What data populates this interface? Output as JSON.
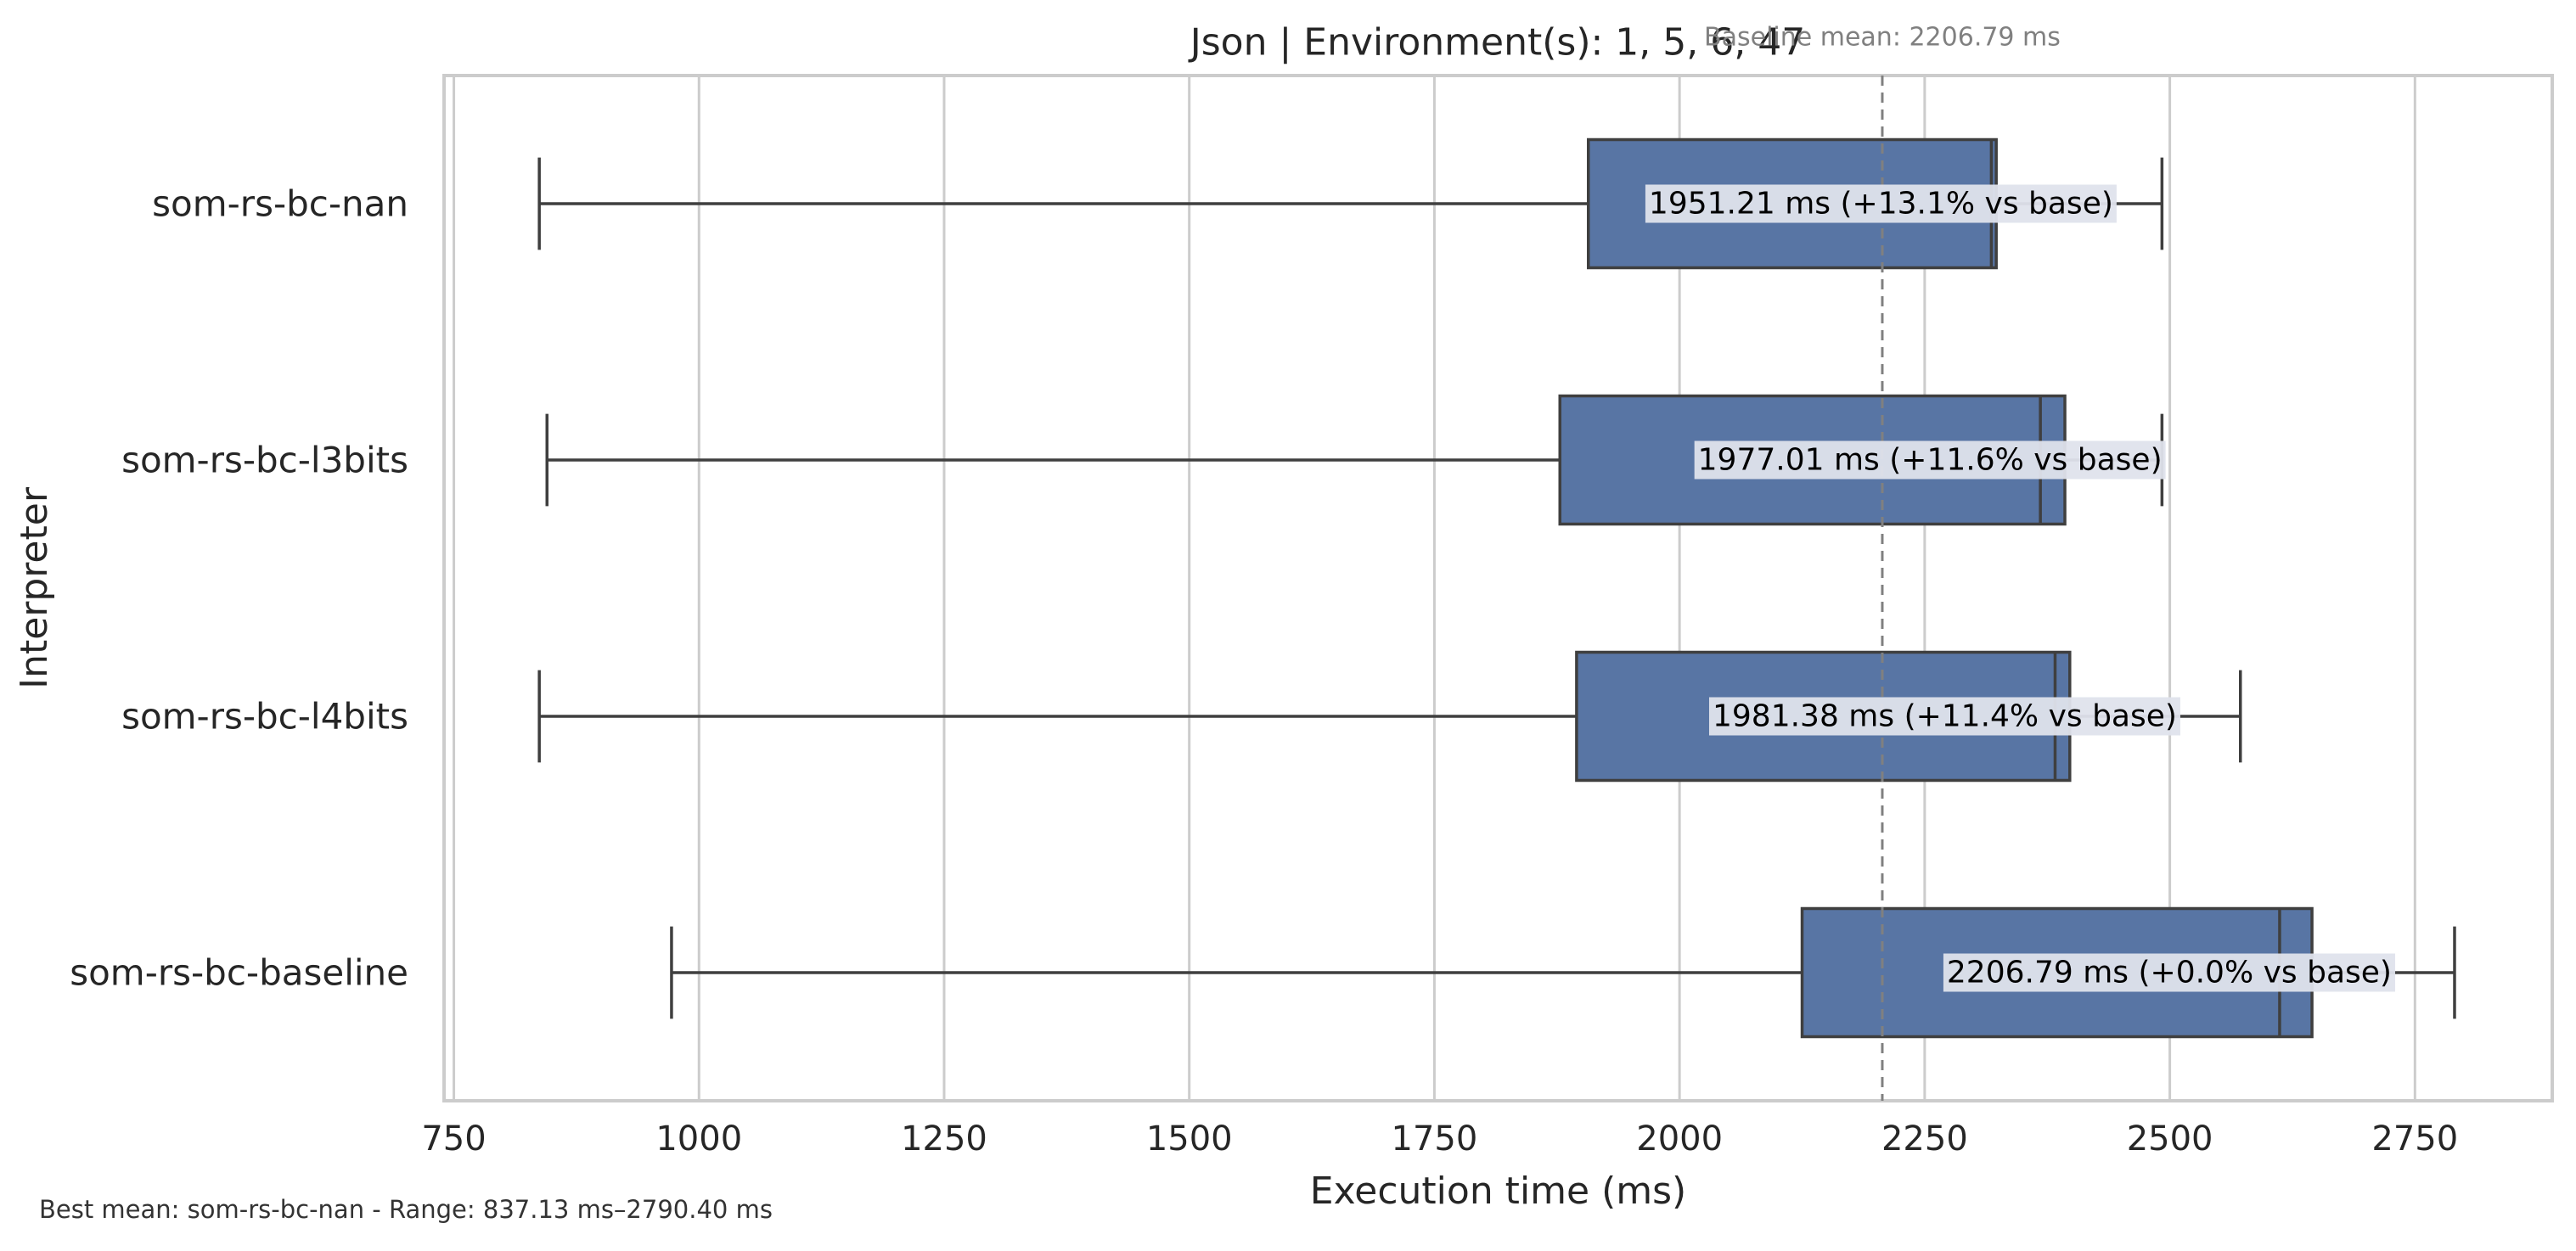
{
  "chart_data": {
    "type": "box",
    "title": "Json | Environment(s): 1, 5, 6, 47",
    "xlabel": "Execution time (ms)",
    "ylabel": "Interpreter",
    "xlim": [
      740,
      2890
    ],
    "xticks": [
      750,
      1000,
      1250,
      1500,
      1750,
      2000,
      2250,
      2500,
      2750
    ],
    "grid": "vertical",
    "orientation": "horizontal",
    "categories": [
      "som-rs-bc-nan",
      "som-rs-bc-l3bits",
      "som-rs-bc-l4bits",
      "som-rs-bc-baseline"
    ],
    "boxes": [
      {
        "name": "som-rs-bc-nan",
        "whisker_low": 837.13,
        "q1": 1907,
        "median": 2318,
        "q3": 2323,
        "whisker_high": 2492,
        "label": "1951.21 ms  (+13.1% vs base)"
      },
      {
        "name": "som-rs-bc-l3bits",
        "whisker_low": 845,
        "q1": 1878,
        "median": 2368,
        "q3": 2393,
        "whisker_high": 2492,
        "label": "1977.01 ms  (+11.6% vs base)"
      },
      {
        "name": "som-rs-bc-l4bits",
        "whisker_low": 837.13,
        "q1": 1895,
        "median": 2383,
        "q3": 2398,
        "whisker_high": 2572,
        "label": "1981.38 ms  (+11.4% vs base)"
      },
      {
        "name": "som-rs-bc-baseline",
        "whisker_low": 972,
        "q1": 2125,
        "median": 2612,
        "q3": 2645,
        "whisker_high": 2790.4,
        "label": "2206.79 ms  (+0.0% vs base)"
      }
    ],
    "baseline_value": 2206.79,
    "baseline_label": "Baseline mean: 2206.79 ms",
    "colors": {
      "box": "#5875a4",
      "edge": "#3f3f3f",
      "grid": "#cccccc",
      "baseline": "#808080",
      "label_bg": "#dfe3ec"
    }
  },
  "footer": "Best mean: som-rs-bc-nan - Range: 837.13 ms–2790.40 ms"
}
